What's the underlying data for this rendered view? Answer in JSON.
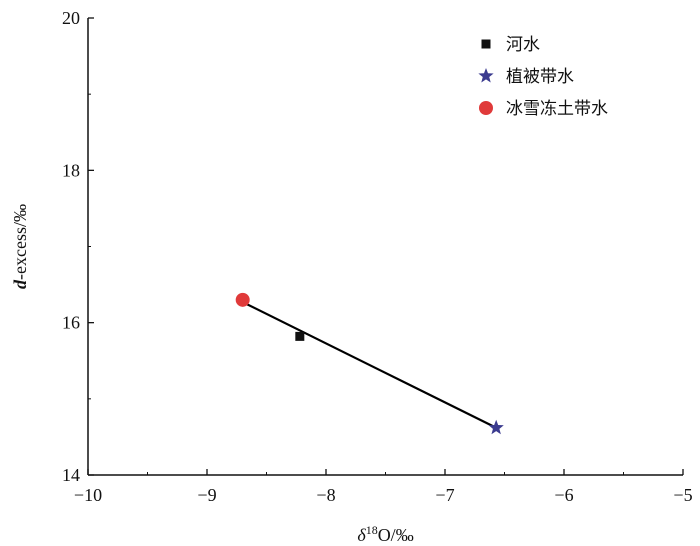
{
  "chart_data": {
    "type": "scatter",
    "xlabel_prefix": "δ",
    "xlabel_sup": "18",
    "xlabel_suffix": "O/‰",
    "ylabel_italic": "d",
    "ylabel_rest": "-excess/‰",
    "xlim": [
      -10,
      -5
    ],
    "ylim": [
      14,
      20
    ],
    "xticks": [
      -10,
      -9,
      -8,
      -7,
      -6,
      -5
    ],
    "xtick_labels": [
      "−10",
      "−9",
      "−8",
      "−7",
      "−6",
      "−5"
    ],
    "yticks": [
      14,
      16,
      18,
      20
    ],
    "ytick_labels": [
      "14",
      "16",
      "18",
      "20"
    ],
    "legend_position": "top-right",
    "series": [
      {
        "name": "河水",
        "marker": "square",
        "color": "#111111",
        "points": [
          {
            "x": -8.22,
            "y": 15.82
          }
        ]
      },
      {
        "name": "植被带水",
        "marker": "star",
        "color": "#3b3b8f",
        "points": [
          {
            "x": -6.57,
            "y": 14.62
          }
        ]
      },
      {
        "name": "冰雪冻土带水",
        "marker": "circle",
        "color": "#e03a3a",
        "points": [
          {
            "x": -8.7,
            "y": 16.3
          }
        ]
      }
    ],
    "fit_line": {
      "x1": -8.7,
      "y1": 16.27,
      "x2": -6.57,
      "y2": 14.62,
      "color": "#000000"
    }
  }
}
